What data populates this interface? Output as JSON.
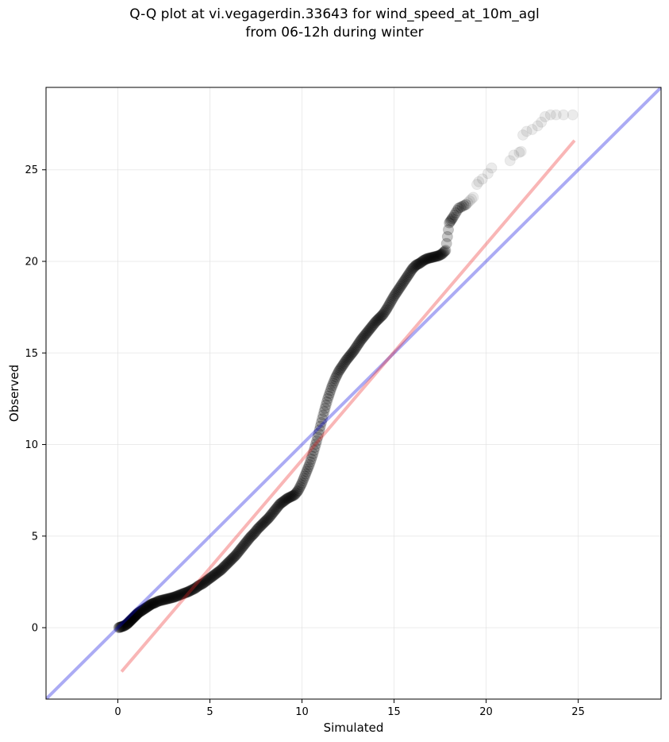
{
  "chart_data": {
    "type": "scatter",
    "title": "Q-Q plot at vi.vegagerdin.33643 for wind_speed_at_10m_agl",
    "subtitle": "from 06-12h during winter",
    "xlabel": "Simulated",
    "ylabel": "Observed",
    "xlim": [
      -3.9,
      29.5
    ],
    "ylim": [
      -3.9,
      29.5
    ],
    "xticks": [
      0,
      5,
      10,
      15,
      20,
      25
    ],
    "yticks": [
      0,
      5,
      10,
      15,
      20,
      25
    ],
    "grid": true,
    "colors": {
      "points": "#000000",
      "identity_line": "#0000dd",
      "fit_line": "#ee2222",
      "grid": "#dddddd"
    },
    "series": [
      {
        "kind": "points",
        "x": [
          0.05,
          0.2,
          0.35,
          0.5,
          0.6,
          0.7,
          0.8,
          0.9,
          1.0,
          1.1,
          1.25,
          1.4,
          1.55,
          1.7,
          1.85,
          2.0,
          2.2,
          2.4,
          2.6,
          2.8,
          3.0,
          3.2,
          3.4,
          3.6,
          3.8,
          4.0,
          4.2,
          4.4,
          4.6,
          4.8,
          5.0,
          5.2,
          5.4,
          5.6,
          5.8,
          6.0,
          6.2,
          6.4,
          6.6,
          6.8,
          7.0,
          7.2,
          7.4,
          7.6,
          7.8,
          8.0,
          8.2,
          8.4,
          8.6,
          8.8,
          9.0,
          9.2,
          9.4,
          9.6,
          9.8,
          10.0,
          10.2,
          10.4,
          10.6,
          10.8,
          11.0,
          11.2,
          11.4,
          11.6,
          11.8,
          12.0,
          12.2,
          12.4,
          12.6,
          12.8,
          13.0,
          13.2,
          13.4,
          13.6,
          13.8,
          14.0,
          14.2,
          14.4,
          14.6,
          14.8,
          15.0,
          15.2,
          15.4,
          15.6,
          15.8,
          16.0,
          16.2,
          16.4,
          16.6,
          16.8,
          17.0,
          17.2,
          17.4,
          17.6,
          17.8,
          18.0,
          18.2,
          18.5,
          18.9,
          19.3,
          19.5,
          19.6,
          19.8,
          20.1,
          20.3,
          21.3,
          21.5,
          21.8,
          21.9,
          22.0,
          22.2,
          22.5,
          22.8,
          23.0,
          23.2,
          23.5,
          23.8,
          24.2,
          24.7
        ],
        "y": [
          0.0,
          0.05,
          0.1,
          0.2,
          0.3,
          0.4,
          0.5,
          0.6,
          0.7,
          0.8,
          0.9,
          1.0,
          1.1,
          1.2,
          1.3,
          1.35,
          1.45,
          1.5,
          1.55,
          1.6,
          1.65,
          1.72,
          1.8,
          1.88,
          1.95,
          2.05,
          2.15,
          2.3,
          2.4,
          2.55,
          2.7,
          2.85,
          3.0,
          3.15,
          3.35,
          3.55,
          3.75,
          3.95,
          4.2,
          4.45,
          4.7,
          4.95,
          5.15,
          5.4,
          5.6,
          5.8,
          6.0,
          6.25,
          6.5,
          6.75,
          6.9,
          7.05,
          7.15,
          7.25,
          7.5,
          7.9,
          8.4,
          8.9,
          9.5,
          10.2,
          11.0,
          11.8,
          12.5,
          13.1,
          13.6,
          14.0,
          14.3,
          14.6,
          14.85,
          15.1,
          15.4,
          15.7,
          15.95,
          16.2,
          16.45,
          16.7,
          16.9,
          17.1,
          17.4,
          17.75,
          18.1,
          18.4,
          18.7,
          19.0,
          19.3,
          19.6,
          19.8,
          19.9,
          20.05,
          20.15,
          20.2,
          20.25,
          20.3,
          20.4,
          20.6,
          22.1,
          22.4,
          22.9,
          23.1,
          23.5,
          24.2,
          24.35,
          24.5,
          24.8,
          25.1,
          25.5,
          25.8,
          25.95,
          26.0,
          26.9,
          27.1,
          27.2,
          27.4,
          27.6,
          27.9,
          28.0,
          28.0,
          28.0,
          28.0
        ],
        "note_order": "sorted quantiles"
      },
      {
        "kind": "identity",
        "x": [
          -3.9,
          29.5
        ],
        "y": [
          -3.9,
          29.5
        ]
      },
      {
        "kind": "fit",
        "x": [
          0.2,
          24.8
        ],
        "y": [
          -2.4,
          26.6
        ]
      }
    ]
  }
}
